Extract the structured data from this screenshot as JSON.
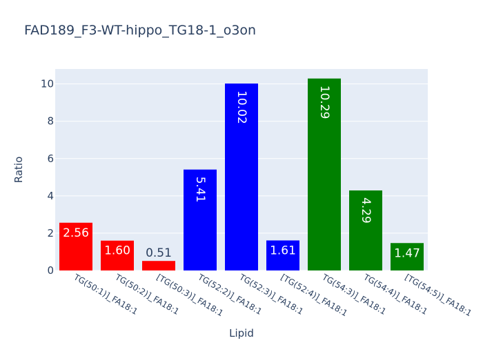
{
  "chart_data": {
    "type": "bar",
    "title": "FAD189_F3-WT-hippo_TG18-1_o3on",
    "xlabel": "Lipid",
    "ylabel": "Ratio",
    "ylim": [
      0,
      10.8
    ],
    "yticks": [
      0,
      2,
      4,
      6,
      8,
      10
    ],
    "grid": true,
    "legend": "none",
    "categories": [
      "TG(50:1)]_FA18:1",
      "TG(50:2)]_FA18:1",
      "[TG(50:3)]_FA18:1",
      "TG(52:2)]_FA18:1",
      "TG(52:3)]_FA18:1",
      "[TG(52:4)]_FA18:1",
      "TG(54:3)]_FA18:1",
      "TG(54:4)]_FA18:1",
      "[TG(54:5)]_FA18:1"
    ],
    "values": [
      2.56,
      1.6,
      0.51,
      5.41,
      10.02,
      1.61,
      10.29,
      4.29,
      1.47
    ],
    "value_labels": [
      "2.56",
      "1.60",
      "0.51",
      "5.41",
      "10.02",
      "1.61",
      "10.29",
      "4.29",
      "1.47"
    ],
    "bar_colors": [
      "#ff0000",
      "#ff0000",
      "#ff0000",
      "#0000ff",
      "#0000ff",
      "#0000ff",
      "#008000",
      "#008000",
      "#008000"
    ],
    "plot_background": "#e5ecf6",
    "text_color": "#2a3f5f"
  }
}
